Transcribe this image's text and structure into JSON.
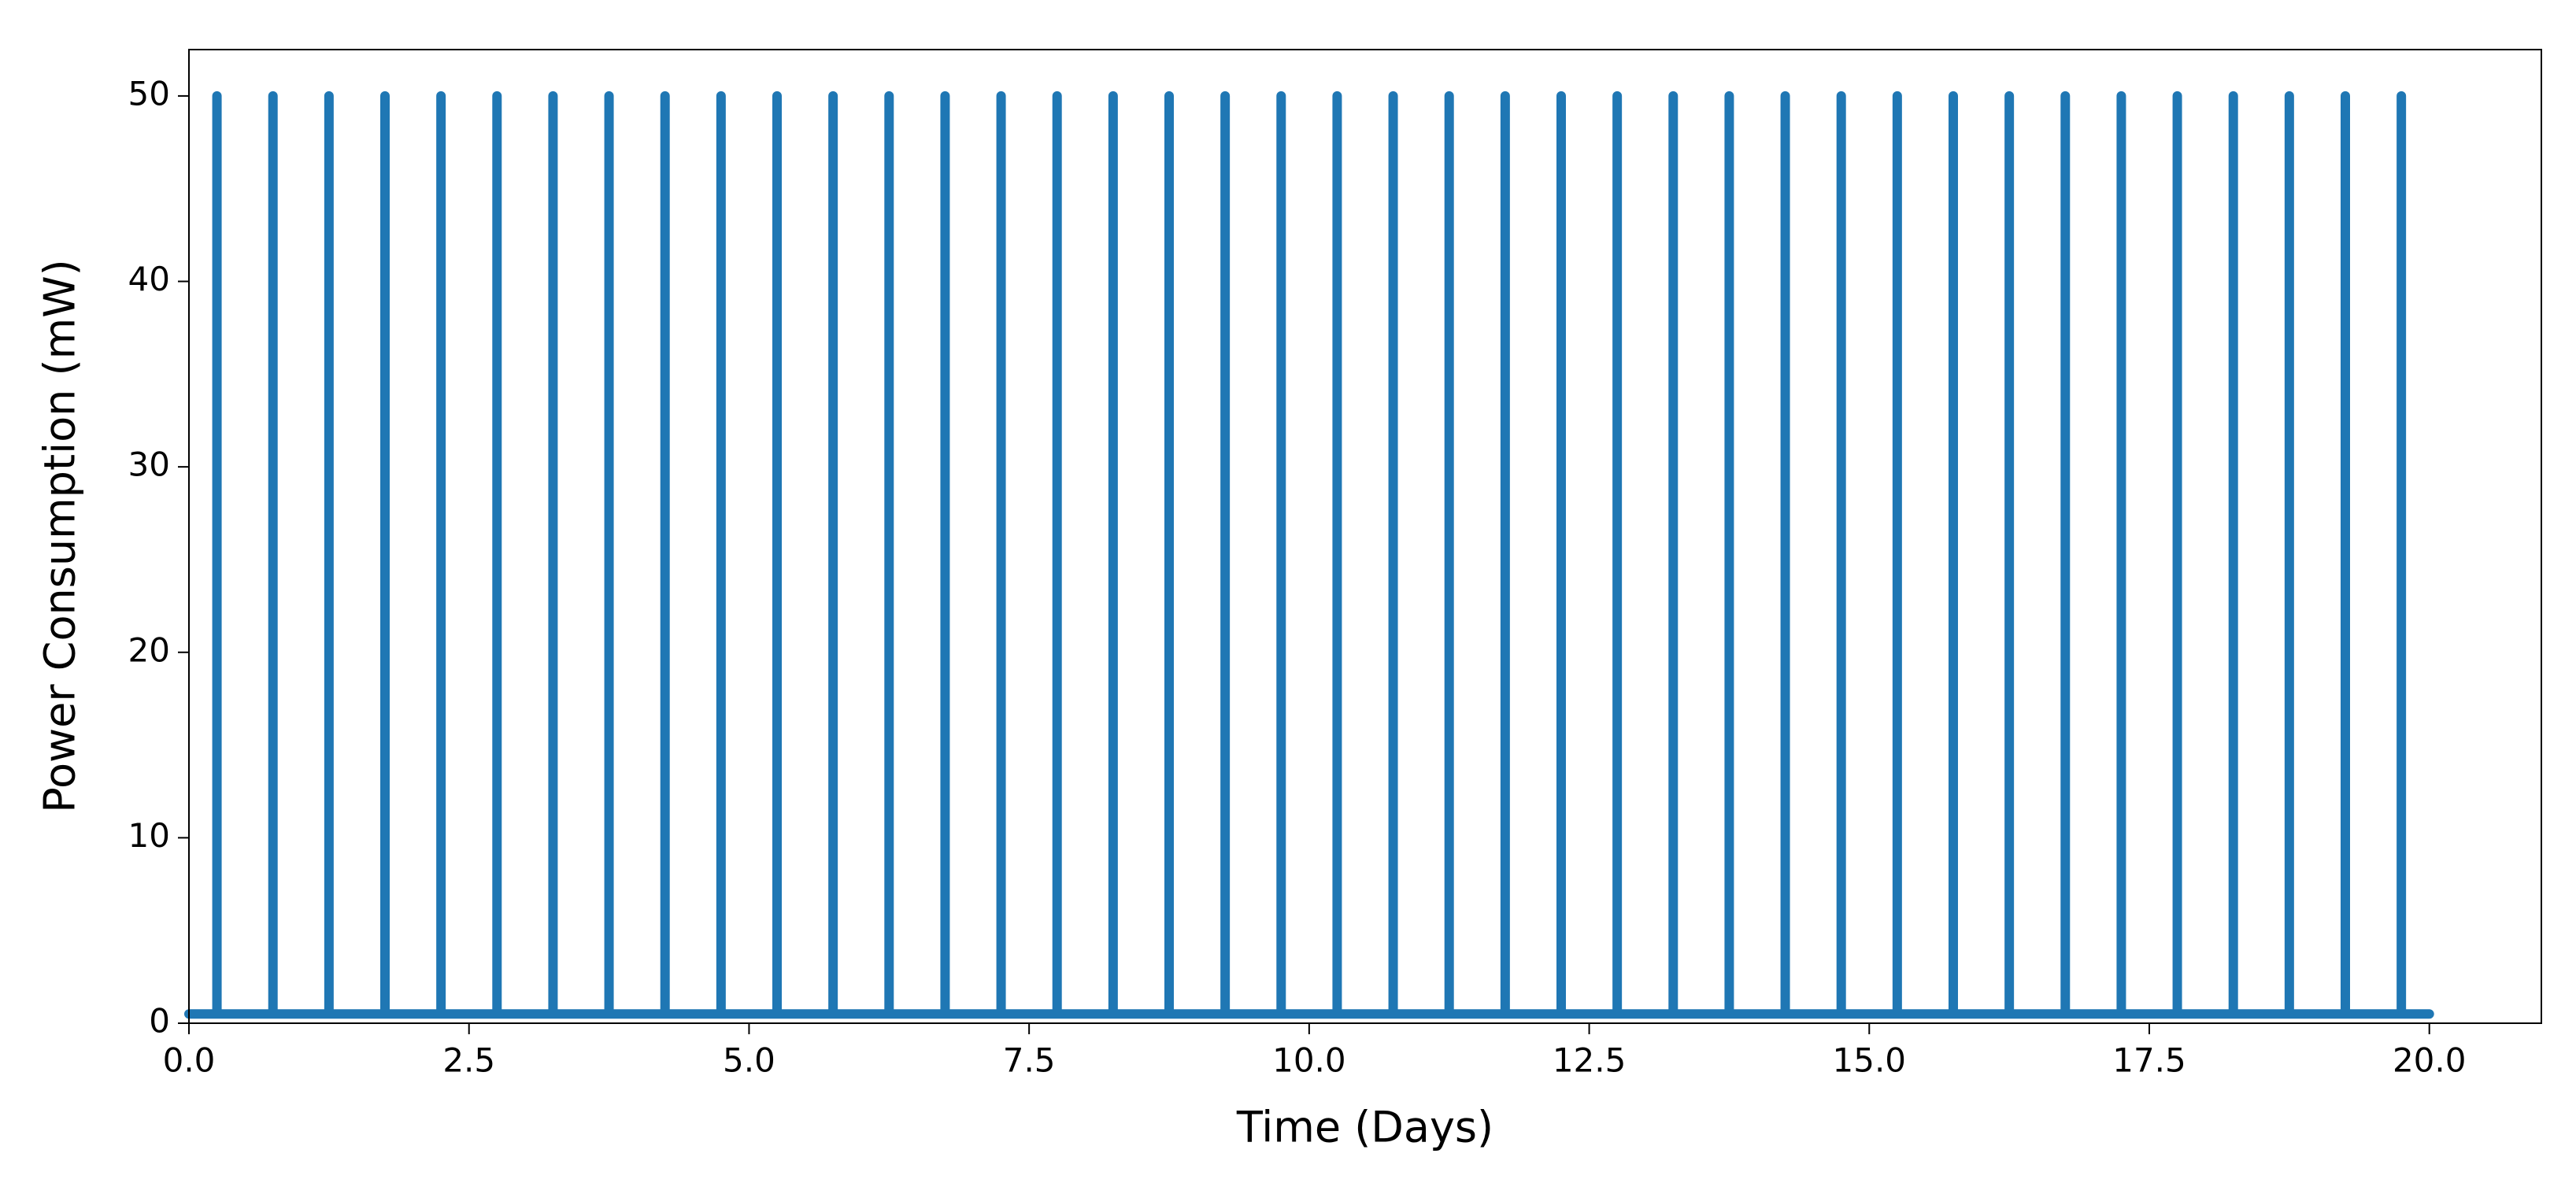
{
  "chart_data": {
    "type": "line",
    "x_label": "Time (Days)",
    "y_label": "Power Consumption (mW)",
    "color": "#1f77b4",
    "x": [
      0,
      0.25,
      0.25,
      0.25,
      0.75,
      0.75,
      0.75,
      1.25,
      1.25,
      1.25,
      1.75,
      1.75,
      1.75,
      2.25,
      2.25,
      2.25,
      2.75,
      2.75,
      2.75,
      3.25,
      3.25,
      3.25,
      3.75,
      3.75,
      3.75,
      4.25,
      4.25,
      4.25,
      4.75,
      4.75,
      4.75,
      5.25,
      5.25,
      5.25,
      5.75,
      5.75,
      5.75,
      6.25,
      6.25,
      6.25,
      6.75,
      6.75,
      6.75,
      7.25,
      7.25,
      7.25,
      7.75,
      7.75,
      7.75,
      8.25,
      8.25,
      8.25,
      8.75,
      8.75,
      8.75,
      9.25,
      9.25,
      9.25,
      9.75,
      9.75,
      9.75,
      10.25,
      10.25,
      10.25,
      10.75,
      10.75,
      10.75,
      11.25,
      11.25,
      11.25,
      11.75,
      11.75,
      11.75,
      12.25,
      12.25,
      12.25,
      12.75,
      12.75,
      12.75,
      13.25,
      13.25,
      13.25,
      13.75,
      13.75,
      13.75,
      14.25,
      14.25,
      14.25,
      14.75,
      14.75,
      14.75,
      15.25,
      15.25,
      15.25,
      15.75,
      15.75,
      15.75,
      16.25,
      16.25,
      16.25,
      16.75,
      16.75,
      16.75,
      17.25,
      17.25,
      17.25,
      17.75,
      17.75,
      17.75,
      18.25,
      18.25,
      18.25,
      18.75,
      18.75,
      18.75,
      19.25,
      19.25,
      19.25,
      19.75,
      19.75,
      19.75,
      20
    ],
    "values": [
      0.5,
      0.5,
      50,
      0.5,
      0.5,
      50,
      0.5,
      0.5,
      50,
      0.5,
      0.5,
      50,
      0.5,
      0.5,
      50,
      0.5,
      0.5,
      50,
      0.5,
      0.5,
      50,
      0.5,
      0.5,
      50,
      0.5,
      0.5,
      50,
      0.5,
      0.5,
      50,
      0.5,
      0.5,
      50,
      0.5,
      0.5,
      50,
      0.5,
      0.5,
      50,
      0.5,
      0.5,
      50,
      0.5,
      0.5,
      50,
      0.5,
      0.5,
      50,
      0.5,
      0.5,
      50,
      0.5,
      0.5,
      50,
      0.5,
      0.5,
      50,
      0.5,
      0.5,
      50,
      0.5,
      0.5,
      50,
      0.5,
      0.5,
      50,
      0.5,
      0.5,
      50,
      0.5,
      0.5,
      50,
      0.5,
      0.5,
      50,
      0.5,
      0.5,
      50,
      0.5,
      0.5,
      50,
      0.5,
      0.5,
      50,
      0.5,
      0.5,
      50,
      0.5,
      0.5,
      50,
      0.5,
      0.5,
      50,
      0.5,
      0.5,
      50,
      0.5,
      0.5,
      50,
      0.5,
      0.5,
      50,
      0.5,
      0.5,
      50,
      0.5,
      0.5,
      50,
      0.5,
      0.5,
      50,
      0.5,
      0.5,
      50,
      0.5,
      0.5,
      50,
      0.5,
      0.5,
      50,
      0.5,
      0.5
    ],
    "xlim": [
      0,
      21
    ],
    "ylim": [
      0,
      52.5
    ],
    "xticks": [
      {
        "value": 0,
        "label": "0.0"
      },
      2.5,
      {
        "value": 5,
        "label": "5.0"
      },
      7.5,
      {
        "value": 10,
        "label": "10.0"
      },
      12.5,
      {
        "value": 15,
        "label": "15.0"
      },
      17.5,
      {
        "value": 20,
        "label": "20.0"
      }
    ],
    "yticks": [
      0,
      10,
      20,
      30,
      40,
      50
    ]
  }
}
